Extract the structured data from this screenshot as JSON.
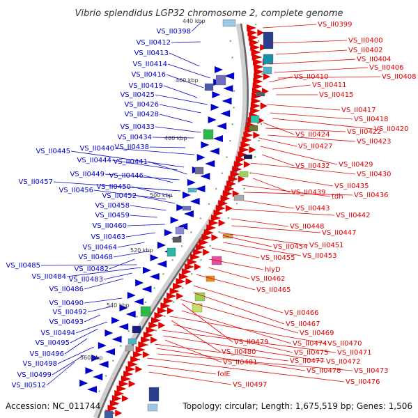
{
  "title": "Vibrio splendidus LGP32 chromosome 2, complete genome",
  "accession": "Accession: NC_011744",
  "summary": "Topology: circular; Length: 1,675,519 bp; Genes: 1,506",
  "colors": {
    "left": "#0000cc",
    "right": "#e00000",
    "backbone": "#888888"
  },
  "ticks": [
    "440 kbp",
    "460 kbp",
    "480 kbp",
    "500 kbp",
    "520 kbp",
    "540 kbp",
    "560 kbp"
  ],
  "left_labels": [
    "VS_II0398",
    "VS_II0412",
    "VS_II0413",
    "VS_II0414",
    "VS_II0416",
    "VS_II0419",
    "VS_II0425",
    "VS_II0426",
    "VS_II0428",
    "VS_II0433",
    "VS_II0434",
    "VS_II0438",
    "VS_II0440",
    "VS_II0445",
    "VS_II0444",
    "VS_II0441",
    "VS_II0449",
    "VS_II0446",
    "VS_II0457",
    "VS_II0450",
    "VS_II0456",
    "VS_II0452",
    "VS_II0458",
    "VS_II0459",
    "VS_II0460",
    "VS_II0463",
    "VS_II0464",
    "VS_II0468",
    "VS_II0485",
    "VS_II0482",
    "VS_II0484",
    "VS_II0483",
    "VS_II0486",
    "VS_II0490",
    "VS_II0492",
    "VS_II0493",
    "VS_II0494",
    "VS_II0495",
    "VS_II0496",
    "VS_II0498",
    "VS_II0499",
    "VS_II0512"
  ],
  "right_labels": [
    "VS_II0399",
    "VS_II0400",
    "VS_II0402",
    "VS_II0404",
    "VS_II0406",
    "VS_II0408",
    "VS_II0410",
    "VS_II0411",
    "VS_II0415",
    "VS_II0417",
    "VS_II0418",
    "VS_II0420",
    "VS_II0424",
    "VS_II0422",
    "VS_II0423",
    "VS_II0427",
    "VS_II0429",
    "VS_II0432",
    "VS_II0430",
    "VS_II0435",
    "VS_II0439",
    "tdh",
    "VS_II0436",
    "VS_II0443",
    "VS_II0442",
    "VS_II0448",
    "VS_II0447",
    "VS_II0451",
    "VS_II0454",
    "VS_II0453",
    "VS_II0455",
    "hlyD",
    "VS_II0462",
    "VS_II0465",
    "VS_II0466",
    "VS_II0467",
    "VS_II0469",
    "VS_II0479",
    "VS_II0474",
    "VS_II0470",
    "VS_II0480",
    "VS_II0475",
    "VS_II0471",
    "VS_II0472",
    "VS_II0481",
    "VS_II0477",
    "VS_II0478",
    "VS_II0473",
    "VS_II0476",
    "folE",
    "VS_II0497"
  ]
}
